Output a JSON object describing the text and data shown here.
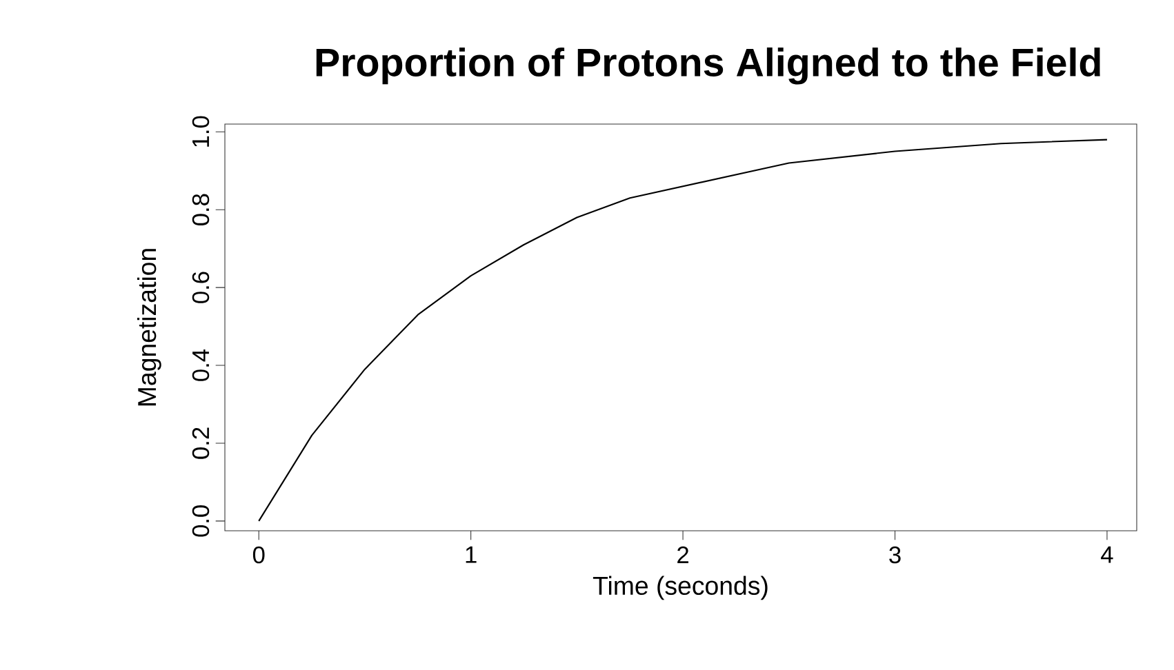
{
  "chart_data": {
    "type": "line",
    "title": "Proportion of Protons Aligned to the Field",
    "xlabel": "Time (seconds)",
    "ylabel": "Magnetization",
    "x": [
      0,
      0.25,
      0.5,
      0.75,
      1,
      1.25,
      1.5,
      1.75,
      2,
      2.5,
      3,
      3.5,
      4
    ],
    "values": [
      0,
      0.22,
      0.39,
      0.53,
      0.63,
      0.71,
      0.78,
      0.83,
      0.86,
      0.92,
      0.95,
      0.97,
      0.98
    ],
    "color": "#000000",
    "xlim": [
      -0.16,
      4.14
    ],
    "ylim": [
      -0.025,
      1.02
    ],
    "xticks": [
      0,
      1,
      2,
      3,
      4
    ],
    "yticks": [
      {
        "value": 0,
        "label": "0.0"
      },
      {
        "value": 0.2,
        "label": "0.2"
      },
      {
        "value": 0.4,
        "label": "0.4"
      },
      {
        "value": 0.6,
        "label": "0.6"
      },
      {
        "value": 0.8,
        "label": "0.8"
      },
      {
        "value": 1,
        "label": "1.0"
      }
    ],
    "grid": false,
    "marker": "none",
    "line_style": "solid"
  }
}
